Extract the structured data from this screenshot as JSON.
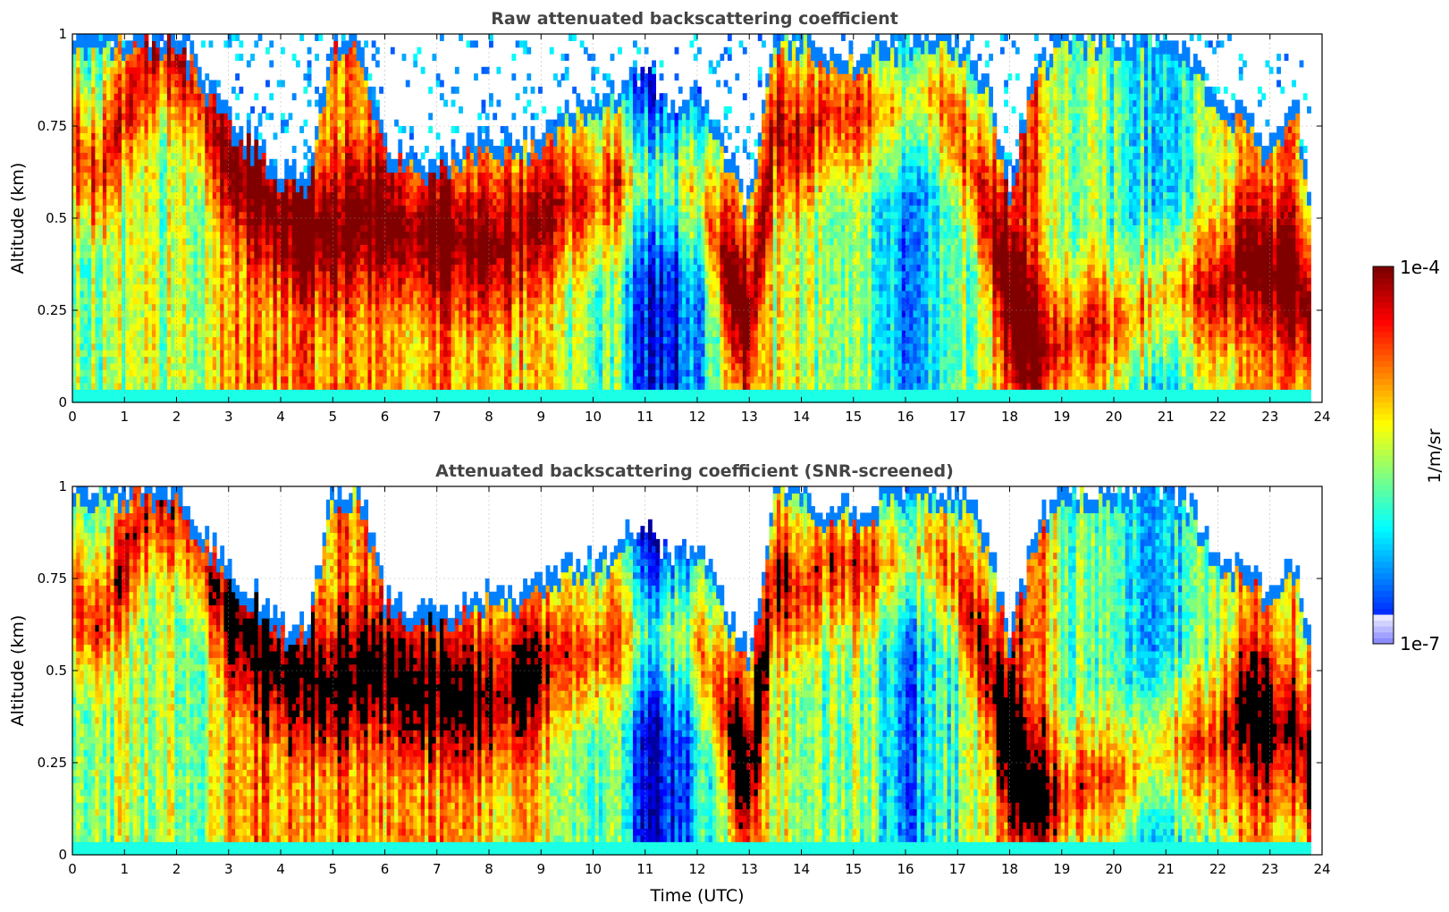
{
  "chart_data": [
    {
      "type": "heatmap",
      "title": "Raw attenuated backscattering coefficient",
      "xlabel": "",
      "ylabel": "Altitude (km)",
      "xlim": [
        0,
        24
      ],
      "ylim": [
        0,
        1
      ],
      "xticks": [
        0,
        1,
        2,
        3,
        4,
        5,
        6,
        7,
        8,
        9,
        10,
        11,
        12,
        13,
        14,
        15,
        16,
        17,
        18,
        19,
        20,
        21,
        22,
        23,
        24
      ],
      "yticks": [
        0,
        0.25,
        0.5,
        0.75,
        1
      ],
      "ytick_labels": [
        "0",
        "0.25",
        "0.5",
        "0.75",
        "1"
      ],
      "grid": true,
      "screened": false
    },
    {
      "type": "heatmap",
      "title": "Attenuated backscattering coefficient (SNR-screened)",
      "xlabel": "Time (UTC)",
      "ylabel": "Altitude (km)",
      "xlim": [
        0,
        24
      ],
      "ylim": [
        0,
        1
      ],
      "xticks": [
        0,
        1,
        2,
        3,
        4,
        5,
        6,
        7,
        8,
        9,
        10,
        11,
        12,
        13,
        14,
        15,
        16,
        17,
        18,
        19,
        20,
        21,
        22,
        23,
        24
      ],
      "yticks": [
        0,
        0.25,
        0.5,
        0.75,
        1
      ],
      "ytick_labels": [
        "0",
        "0.25",
        "0.5",
        "0.75",
        "1"
      ],
      "grid": true,
      "screened": true
    }
  ],
  "colorbar": {
    "label": "1/m/sr",
    "max_label": "1e-4",
    "min_label": "1e-7",
    "scale": "log",
    "colormap": "jet"
  },
  "profile": {
    "times": [
      0,
      0.5,
      1,
      1.5,
      2,
      2.5,
      3,
      3.5,
      4,
      4.5,
      5,
      5.5,
      6,
      6.5,
      7,
      7.5,
      8,
      8.5,
      9,
      9.5,
      10,
      10.5,
      11,
      11.5,
      12,
      12.5,
      13,
      13.5,
      14,
      14.5,
      15,
      15.5,
      16,
      16.5,
      17,
      17.5,
      18,
      18.5,
      19,
      19.5,
      20,
      20.5,
      21,
      21.5,
      22,
      22.5,
      23,
      23.5,
      23.8
    ],
    "top_km": [
      1.0,
      1.0,
      1.0,
      1.0,
      1.0,
      0.9,
      0.78,
      0.72,
      0.63,
      0.63,
      1.0,
      1.0,
      0.72,
      0.66,
      0.66,
      0.7,
      0.72,
      0.7,
      0.74,
      0.8,
      0.8,
      0.85,
      0.9,
      0.8,
      0.85,
      0.7,
      0.55,
      1.0,
      1.0,
      0.95,
      0.95,
      0.98,
      1.0,
      1.0,
      1.0,
      0.9,
      0.6,
      0.9,
      1.0,
      1.0,
      1.0,
      1.0,
      1.0,
      0.95,
      0.8,
      0.8,
      0.7,
      0.8,
      0.55
    ],
    "layer_km": [
      0.7,
      0.6,
      0.8,
      0.95,
      0.95,
      0.8,
      0.65,
      0.58,
      0.5,
      0.48,
      0.45,
      0.5,
      0.5,
      0.45,
      0.45,
      0.43,
      0.42,
      0.45,
      0.5,
      0.55,
      0.55,
      0.6,
      0.6,
      0.6,
      0.58,
      0.4,
      0.2,
      0.75,
      0.7,
      0.8,
      0.78,
      0.8,
      0.8,
      0.85,
      0.75,
      0.55,
      0.3,
      0.15,
      0.15,
      0.2,
      0.2,
      0.25,
      0.3,
      0.3,
      0.3,
      0.4,
      0.35,
      0.35,
      0.2
    ],
    "base": [
      0.55,
      0.5,
      0.55,
      0.55,
      0.55,
      0.5,
      0.7,
      0.75,
      0.75,
      0.75,
      0.75,
      0.75,
      0.7,
      0.72,
      0.74,
      0.72,
      0.7,
      0.68,
      0.65,
      0.55,
      0.5,
      0.45,
      0.15,
      0.12,
      0.3,
      0.6,
      0.75,
      0.6,
      0.55,
      0.5,
      0.55,
      0.45,
      0.25,
      0.35,
      0.45,
      0.6,
      0.85,
      0.85,
      0.5,
      0.5,
      0.45,
      0.4,
      0.35,
      0.45,
      0.55,
      0.75,
      0.75,
      0.7,
      0.7
    ]
  }
}
